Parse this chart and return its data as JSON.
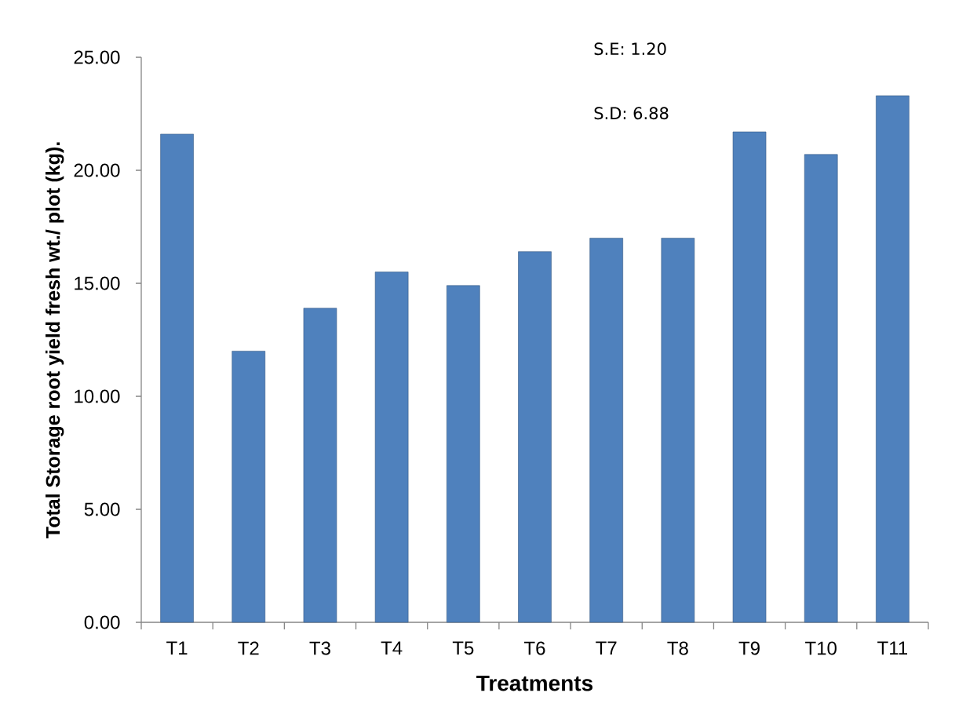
{
  "chart_data": {
    "type": "bar",
    "xlabel": "Treatments",
    "ylabel": "Total Storage root yield fresh wt./ plot (kg).",
    "annotations": [
      "S.E: 1.20",
      "S.D: 6.88"
    ],
    "categories": [
      "T1",
      "T2",
      "T3",
      "T4",
      "T5",
      "T6",
      "T7",
      "T8",
      "T9",
      "T10",
      "T11"
    ],
    "values": [
      21.6,
      12.0,
      13.9,
      15.5,
      14.9,
      16.4,
      17.0,
      17.0,
      21.7,
      20.7,
      23.3
    ],
    "color": "#4f81bd",
    "ylim": [
      0,
      25
    ],
    "yticks": [
      {
        "value": 0,
        "label": "0.00"
      },
      {
        "value": 5,
        "label": "5.00"
      },
      {
        "value": 10,
        "label": "10.00"
      },
      {
        "value": 15,
        "label": "15.00"
      },
      {
        "value": 20,
        "label": "20.00"
      },
      {
        "value": 25,
        "label": "25.00"
      }
    ],
    "grid": false
  }
}
